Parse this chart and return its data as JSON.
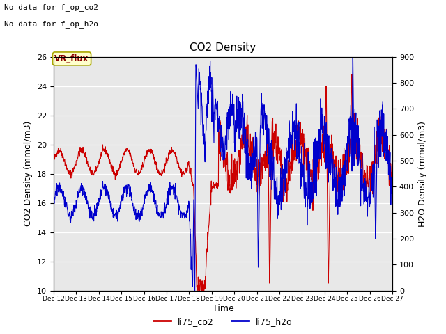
{
  "title": "CO2 Density",
  "xlabel": "Time",
  "ylabel_left": "CO2 Density (mmol/m3)",
  "ylabel_right": "H2O Density (mmol/m3)",
  "top_text_line1": "No data for f_op_co2",
  "top_text_line2": "No data for f_op_h2o",
  "legend_label1": "li75_co2",
  "legend_label2": "li75_h2o",
  "vr_flux_label": "VR_flux",
  "xlim_days": [
    12,
    27
  ],
  "ylim_left": [
    10,
    26
  ],
  "ylim_right": [
    0,
    900
  ],
  "yticks_left": [
    10,
    12,
    14,
    16,
    18,
    20,
    22,
    24,
    26
  ],
  "yticks_right": [
    0,
    100,
    200,
    300,
    400,
    500,
    600,
    700,
    800,
    900
  ],
  "color_co2": "#cc0000",
  "color_h2o": "#0000cc",
  "bg_color": "#e8e8e8",
  "vr_flux_bg": "#ffffcc",
  "vr_flux_border": "#aaa800",
  "vr_flux_text": "#8b0000"
}
